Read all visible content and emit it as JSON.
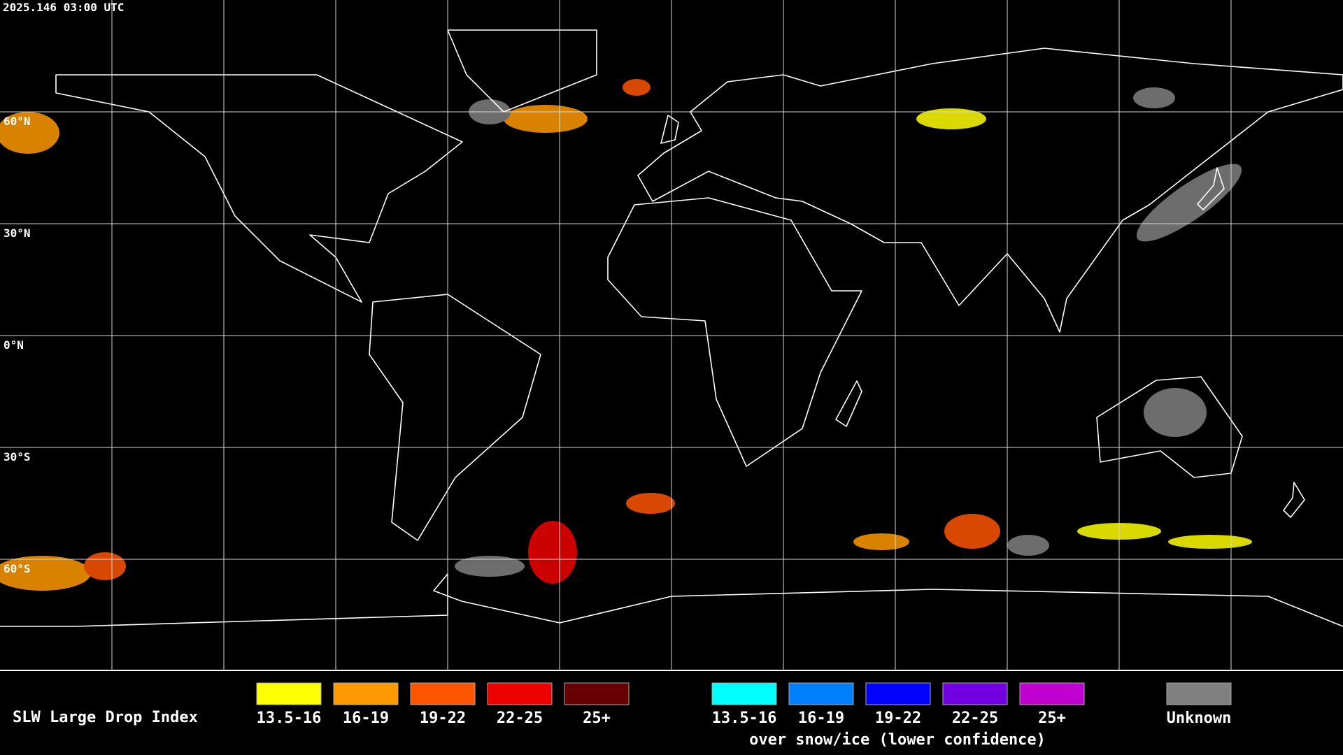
{
  "timestamp": "2025.146 03:00 UTC",
  "latitude_labels": [
    "60°N",
    "30°N",
    "0°N",
    "30°S",
    "60°S"
  ],
  "legend": {
    "title": "SLW Large Drop Index",
    "items": [
      {
        "label": "13.5-16",
        "color": "#ffff00"
      },
      {
        "label": "16-19",
        "color": "#ff9900"
      },
      {
        "label": "19-22",
        "color": "#ff5500"
      },
      {
        "label": "22-25",
        "color": "#ee0000"
      },
      {
        "label": "25+",
        "color": "#660000"
      }
    ],
    "snow_items": [
      {
        "label": "13.5-16",
        "color": "#00ffff"
      },
      {
        "label": "16-19",
        "color": "#0080ff"
      },
      {
        "label": "19-22",
        "color": "#0000ff"
      },
      {
        "label": "22-25",
        "color": "#7000e0"
      },
      {
        "label": "25+",
        "color": "#c000d0"
      }
    ],
    "snow_caption": "over snow/ice (lower confidence)",
    "unknown": {
      "label": "Unknown",
      "color": "#808080"
    }
  }
}
